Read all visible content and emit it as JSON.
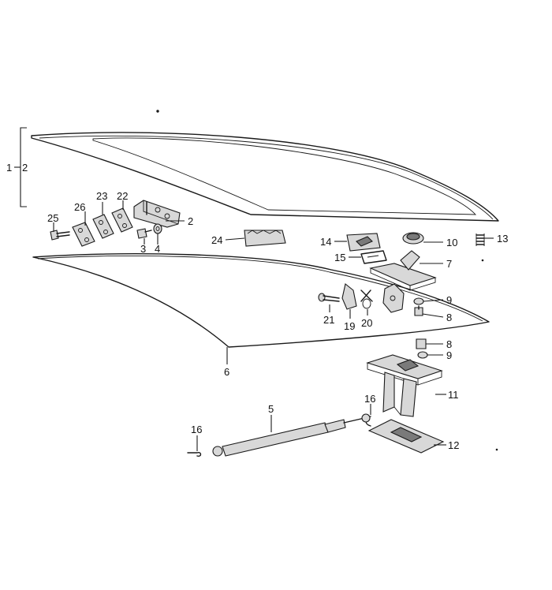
{
  "callouts": {
    "c1": "1",
    "c2": "2",
    "c2b": "2",
    "c3": "3",
    "c4": "4",
    "c5": "5",
    "c6": "6",
    "c7": "7",
    "c8a": "8",
    "c8b": "8",
    "c9a": "9",
    "c9b": "9",
    "c10": "10",
    "c11": "11",
    "c12": "12",
    "c13": "13",
    "c14": "14",
    "c15": "15",
    "c16a": "16",
    "c16b": "16",
    "c19": "19",
    "c20": "20",
    "c21": "21",
    "c22": "22",
    "c23": "23",
    "c24": "24",
    "c25": "25",
    "c26": "26"
  },
  "colors": {
    "line": "#1a1a1a",
    "background": "#ffffff"
  }
}
